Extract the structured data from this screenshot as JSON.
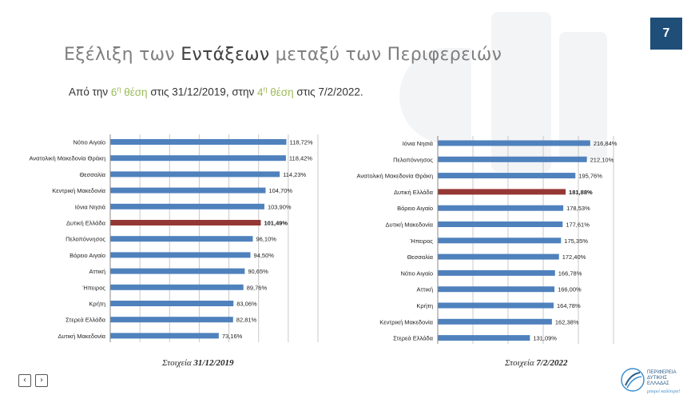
{
  "page_number": "7",
  "title": {
    "part1": "Εξέλιξη των ",
    "part2": "Εντάξεων",
    "part3": " μεταξύ των Περιφερειών"
  },
  "subtitle": {
    "a": "Από  την  ",
    "h1": "6",
    "h1_sup": "η",
    "h1_b": " θέση",
    "b": " στις 31/12/2019, στην ",
    "h2": "4",
    "h2_sup": "η",
    "h2_b": " θέση",
    "c": " στις 7/2/2022."
  },
  "colors": {
    "bar": "#4f81bd",
    "highlight": "#953735",
    "subtitle_highlight": "#9bbb59",
    "badge": "#1f4e79"
  },
  "chart_data": [
    {
      "type": "bar",
      "orientation": "horizontal",
      "caption_prefix": "Στοιχεία ",
      "caption_date": "31/12/2019",
      "highlight": "Δυτική Ελλάδα",
      "categories": [
        "Νότιο Αιγαίο",
        "Ανατολική Μακεδονία Θράκη",
        "Θεσσαλία",
        "Κεντρική Μακεδονία",
        "Ιόνια Νησιά",
        "Δυτική Ελλάδα",
        "Πελοπόννησος",
        "Βόρειο Αιγαίο",
        "Αττική",
        "Ήπειρος",
        "Κρήτη",
        "Στερεά Ελλάδα",
        "Δυτική Μακεδονία"
      ],
      "values": [
        118.72,
        118.42,
        114.23,
        104.7,
        103.9,
        101.49,
        96.1,
        94.5,
        90.65,
        89.76,
        83.06,
        82.81,
        73.16
      ],
      "labels": [
        "118,72%",
        "118,42%",
        "114,23%",
        "104,70%",
        "103,90%",
        "101,49%",
        "96,10%",
        "94,50%",
        "90,65%",
        "89,76%",
        "83,06%",
        "82,81%",
        "73,16%"
      ],
      "xlim": [
        0,
        140
      ],
      "grid": true
    },
    {
      "type": "bar",
      "orientation": "horizontal",
      "caption_prefix": "Στοιχεία ",
      "caption_date": "7/2/2022",
      "highlight": "Δυτική Ελλάδα",
      "categories": [
        "Ιόνια Νησιά",
        "Πελοπόννησος",
        "Ανατολική Μακεδονία Θράκη",
        "Δυτική Ελλάδα",
        "Βόρειο Αιγαίο",
        "Δυτική Μακεδονία",
        "Ήπειρος",
        "Θεσσαλία",
        "Νότιο Αιγαίο",
        "Αττική",
        "Κρήτη",
        "Κεντρική Μακεδονία",
        "Στερεά Ελλάδα"
      ],
      "values": [
        216.84,
        212.1,
        195.76,
        181.88,
        178.53,
        177.61,
        175.35,
        172.4,
        166.78,
        166.0,
        164.78,
        162.38,
        131.09
      ],
      "labels": [
        "216,84%",
        "212,10%",
        "195,76%",
        "181,88%",
        "178,53%",
        "177,61%",
        "175,35%",
        "172,40%",
        "166,78%",
        "166,00%",
        "164,78%",
        "162,38%",
        "131,09%"
      ],
      "xlim": [
        0,
        250
      ],
      "grid": true
    }
  ],
  "logo": {
    "line1": "ΠΕΡΙΦΕΡΕΙΑ",
    "line2": "ΔΥΤΙΚΗΣ",
    "line3": "ΕΛΛΑΔΑΣ",
    "slogan": "μπορεί καλύτερα!"
  },
  "nav": {
    "prev": "‹",
    "next": "›"
  }
}
